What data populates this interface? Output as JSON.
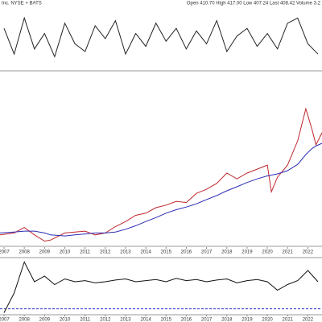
{
  "header": {
    "title": "Inc. NYSE + BATS",
    "quote": "Open 410.70 High 417.00 Low 407.24 Last 408.42 Volume 3.2"
  },
  "chart_data": [
    {
      "type": "line",
      "xlim": [
        2006.8,
        2022.7
      ],
      "ylim": [
        0,
        100
      ],
      "x": [
        2007,
        2007.5,
        2008,
        2008.5,
        2009,
        2009.5,
        2010,
        2010.5,
        2011,
        2011.5,
        2012,
        2012.5,
        2013,
        2013.5,
        2014,
        2014.5,
        2015,
        2015.5,
        2016,
        2016.5,
        2017,
        2017.5,
        2018,
        2018.5,
        2019,
        2019.5,
        2020,
        2020.5,
        2021,
        2021.5,
        2022,
        2022.5
      ],
      "series": [
        {
          "color": "#222222",
          "values": [
            70,
            20,
            90,
            30,
            60,
            15,
            80,
            40,
            25,
            75,
            50,
            85,
            20,
            60,
            35,
            80,
            45,
            70,
            30,
            65,
            40,
            85,
            25,
            55,
            70,
            35,
            60,
            30,
            80,
            90,
            40,
            20
          ]
        }
      ]
    },
    {
      "type": "line",
      "log_scale": true,
      "xlim": [
        2006.8,
        2022.7
      ],
      "ylim": [
        60,
        700
      ],
      "xticks": [
        2007,
        2008,
        2009,
        2010,
        2011,
        2012,
        2013,
        2014,
        2015,
        2016,
        2017,
        2018,
        2019,
        2020,
        2021,
        2022
      ],
      "x": [
        2006.8,
        2007.5,
        2008,
        2008.5,
        2009,
        2009.3,
        2010,
        2010.5,
        2011,
        2011.5,
        2012,
        2012.5,
        2013,
        2013.5,
        2014,
        2014.5,
        2015,
        2015.5,
        2016,
        2016.5,
        2017,
        2017.5,
        2018,
        2018.5,
        2019,
        2019.5,
        2020,
        2020.2,
        2020.5,
        2021,
        2021.5,
        2021.9,
        2022.2,
        2022.4,
        2022.7
      ],
      "series": [
        {
          "color": "#c0262d",
          "values": [
            70,
            72,
            78,
            70,
            64,
            65,
            72,
            73,
            74,
            70,
            72,
            79,
            85,
            93,
            96,
            104,
            108,
            114,
            112,
            128,
            136,
            148,
            172,
            158,
            172,
            182,
            193,
            131,
            162,
            193,
            275,
            438,
            327,
            259,
            309
          ]
        },
        {
          "color": "#2b2bb5",
          "values": [
            72,
            73,
            74,
            74,
            72,
            70,
            69,
            70,
            71,
            72,
            72,
            73,
            76,
            80,
            85,
            90,
            96,
            101,
            105,
            110,
            117,
            124,
            133,
            141,
            150,
            158,
            165,
            167,
            170,
            178,
            195,
            225,
            245,
            255,
            265
          ]
        }
      ]
    },
    {
      "type": "line",
      "xlim": [
        2006.8,
        2022.7
      ],
      "ylim": [
        0,
        100
      ],
      "reference_line": 12,
      "reference_color": "#2233cc",
      "xticks": [
        2007,
        2008,
        2009,
        2010,
        2011,
        2012,
        2013,
        2014,
        2015,
        2016,
        2017,
        2018,
        2019,
        2020,
        2021,
        2022
      ],
      "x": [
        2007,
        2007.5,
        2008,
        2008.5,
        2009,
        2009.5,
        2010,
        2010.5,
        2011,
        2011.5,
        2012,
        2012.5,
        2013,
        2013.5,
        2014,
        2014.5,
        2015,
        2015.5,
        2016,
        2016.5,
        2017,
        2017.5,
        2018,
        2018.5,
        2019,
        2019.5,
        2020,
        2020.5,
        2021,
        2021.5,
        2022,
        2022.5
      ],
      "series": [
        {
          "color": "#111111",
          "values": [
            5,
            40,
            95,
            60,
            70,
            55,
            65,
            60,
            62,
            58,
            60,
            63,
            65,
            60,
            62,
            64,
            60,
            66,
            62,
            64,
            60,
            63,
            65,
            58,
            62,
            64,
            60,
            45,
            55,
            62,
            80,
            60
          ]
        }
      ]
    }
  ]
}
